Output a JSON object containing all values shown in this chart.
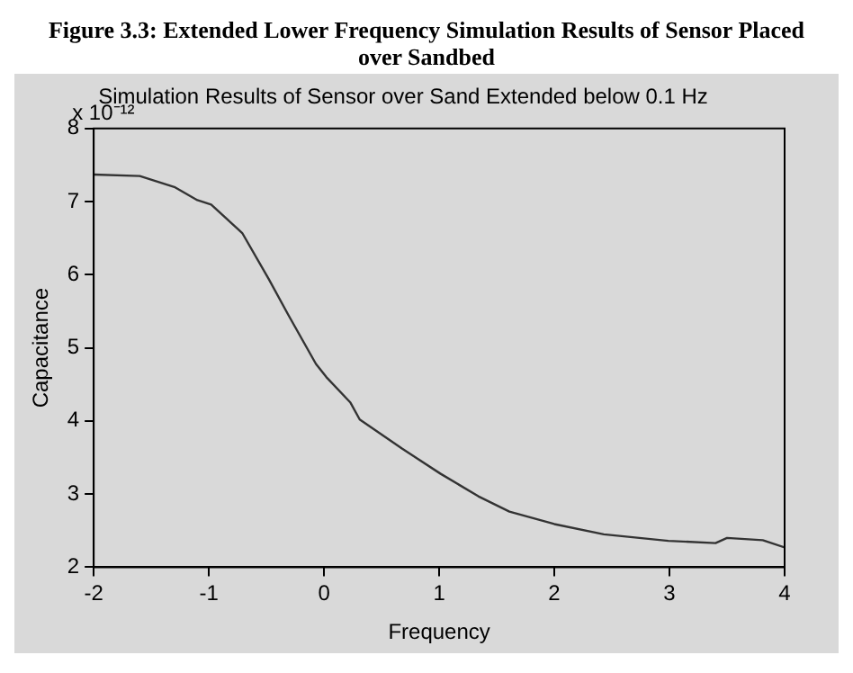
{
  "chart_data": {
    "type": "line",
    "title": "Figure 3.3: Extended Lower Frequency Simulation Results of Sensor Placed over Sandbed",
    "subtitle": "Simulation Results of Sensor over Sand Extended below 0.1 Hz",
    "xlabel": "Frequency",
    "ylabel": "Capacitance",
    "annotations": [
      "x 10⁻¹²"
    ],
    "series": [
      {
        "color": "#333333",
        "x": [
          -2,
          -1.6,
          -1.3,
          -1.1,
          -0.98,
          -0.71,
          -0.48,
          -0.31,
          -0.07,
          0.02,
          0.23,
          0.31,
          0.68,
          1.01,
          1.34,
          1.61,
          2.0,
          2.43,
          2.99,
          3.4,
          3.5,
          3.81,
          4
        ],
        "values": [
          7.37,
          7.35,
          7.2,
          7.02,
          6.96,
          6.57,
          5.94,
          5.45,
          4.78,
          4.6,
          4.25,
          4.02,
          3.62,
          3.28,
          2.97,
          2.76,
          2.59,
          2.45,
          2.36,
          2.33,
          2.4,
          2.37,
          2.27
        ]
      }
    ],
    "xlim": [
      -2,
      4
    ],
    "xticks": [
      -2,
      -1,
      0,
      1,
      2,
      3,
      4
    ],
    "ylim": [
      2,
      8
    ],
    "yticks": [
      2,
      3,
      4,
      5,
      6,
      7,
      8
    ],
    "grid": false,
    "legend": false,
    "marker": "none",
    "line_style": "solid"
  }
}
